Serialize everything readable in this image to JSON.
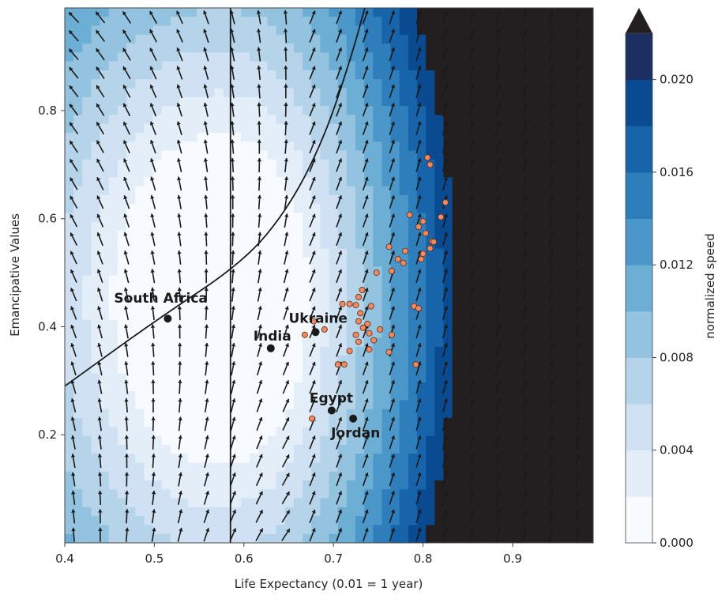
{
  "chart_data": {
    "type": "heatmap",
    "title": "",
    "xlabel": "Life Expectancy (0.01 = 1 year)",
    "ylabel": "Emancipative Values",
    "xlim": [
      0.4,
      0.99
    ],
    "ylim": [
      0.0,
      0.99
    ],
    "xticks": [
      "0.4",
      "0.5",
      "0.6",
      "0.7",
      "0.8",
      "0.9"
    ],
    "yticks": [
      "0.2",
      "0.4",
      "0.6",
      "0.8"
    ],
    "grid": false,
    "colorbar": {
      "label": "normalized speed",
      "ticks": [
        "0.000",
        "0.004",
        "0.008",
        "0.012",
        "0.016",
        "0.020"
      ],
      "levels": [
        0.0,
        0.002,
        0.004,
        0.006,
        0.008,
        0.01,
        0.012,
        0.014,
        0.016,
        0.018,
        0.02
      ],
      "colors": [
        "#f7fbff",
        "#e3eef9",
        "#cfe1f2",
        "#b5d4e9",
        "#93c3df",
        "#6daed5",
        "#4b97c9",
        "#2f7ebc",
        "#1864aa",
        "#0a4a90",
        "#1c2f62"
      ],
      "extend": "max",
      "extend_color": "#231f20"
    },
    "vertical_line_x": 0.585,
    "curve_points": [
      [
        0.4,
        0.29
      ],
      [
        0.5,
        0.41
      ],
      [
        0.6,
        0.52
      ],
      [
        0.65,
        0.62
      ],
      [
        0.69,
        0.75
      ],
      [
        0.72,
        0.9
      ],
      [
        0.735,
        0.99
      ]
    ],
    "highlighted_countries": [
      {
        "name": "South Africa",
        "x": 0.515,
        "y": 0.415
      },
      {
        "name": "India",
        "x": 0.63,
        "y": 0.36
      },
      {
        "name": "Ukraine",
        "x": 0.68,
        "y": 0.39
      },
      {
        "name": "Egypt",
        "x": 0.698,
        "y": 0.245
      },
      {
        "name": "Jordan",
        "x": 0.722,
        "y": 0.23
      }
    ],
    "country_points": [
      [
        0.805,
        0.713
      ],
      [
        0.808,
        0.7
      ],
      [
        0.825,
        0.63
      ],
      [
        0.785,
        0.607
      ],
      [
        0.8,
        0.595
      ],
      [
        0.82,
        0.603
      ],
      [
        0.795,
        0.585
      ],
      [
        0.803,
        0.573
      ],
      [
        0.81,
        0.558
      ],
      [
        0.808,
        0.545
      ],
      [
        0.8,
        0.535
      ],
      [
        0.78,
        0.54
      ],
      [
        0.772,
        0.525
      ],
      [
        0.798,
        0.525
      ],
      [
        0.812,
        0.557
      ],
      [
        0.762,
        0.548
      ],
      [
        0.778,
        0.518
      ],
      [
        0.765,
        0.503
      ],
      [
        0.748,
        0.5
      ],
      [
        0.732,
        0.468
      ],
      [
        0.728,
        0.455
      ],
      [
        0.718,
        0.442
      ],
      [
        0.71,
        0.442
      ],
      [
        0.725,
        0.44
      ],
      [
        0.742,
        0.438
      ],
      [
        0.73,
        0.425
      ],
      [
        0.728,
        0.41
      ],
      [
        0.738,
        0.405
      ],
      [
        0.733,
        0.398
      ],
      [
        0.752,
        0.395
      ],
      [
        0.74,
        0.388
      ],
      [
        0.725,
        0.385
      ],
      [
        0.728,
        0.372
      ],
      [
        0.745,
        0.375
      ],
      [
        0.765,
        0.385
      ],
      [
        0.79,
        0.438
      ],
      [
        0.795,
        0.434
      ],
      [
        0.74,
        0.358
      ],
      [
        0.718,
        0.355
      ],
      [
        0.705,
        0.33
      ],
      [
        0.712,
        0.33
      ],
      [
        0.792,
        0.33
      ],
      [
        0.762,
        0.353
      ],
      [
        0.678,
        0.41
      ],
      [
        0.69,
        0.395
      ],
      [
        0.676,
        0.23
      ],
      [
        0.668,
        0.385
      ]
    ],
    "flow_field": {
      "description": "quiver arrows on a regular grid of x,y values",
      "x_start": 0.41,
      "x_step": 0.0296,
      "y_start": 0.015,
      "y_step": 0.0342
    }
  }
}
